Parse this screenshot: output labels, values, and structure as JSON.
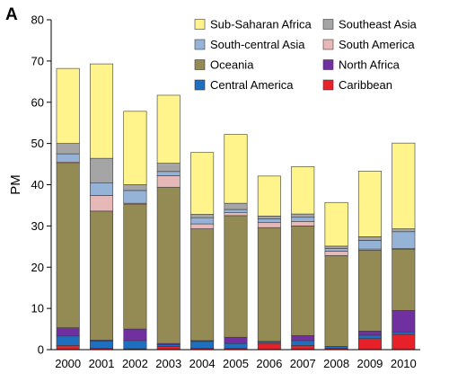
{
  "panel_letter": "A",
  "chart_data": {
    "type": "bar",
    "stacked": true,
    "title": "",
    "xlabel": "",
    "ylabel": "PM",
    "ylim": [
      0,
      80
    ],
    "yticks": [
      0,
      10,
      20,
      30,
      40,
      50,
      60,
      70,
      80
    ],
    "grid": false,
    "legend_position": "top-right",
    "categories": [
      "2000",
      "2001",
      "2002",
      "2003",
      "2004",
      "2005",
      "2006",
      "2007",
      "2008",
      "2009",
      "2010"
    ],
    "series": [
      {
        "name": "Caribbean",
        "color": "#e8202a",
        "values": [
          1.0,
          0.3,
          0.2,
          0.8,
          0.3,
          0.3,
          1.5,
          1.0,
          0.3,
          2.7,
          3.7
        ]
      },
      {
        "name": "Central America",
        "color": "#1f6fc1",
        "values": [
          2.3,
          1.8,
          2.0,
          0.4,
          1.7,
          1.2,
          0.4,
          1.2,
          0.5,
          0.8,
          0.6
        ]
      },
      {
        "name": "North Africa",
        "color": "#7030a0",
        "values": [
          2.0,
          0.2,
          2.8,
          0.3,
          0.2,
          1.5,
          0.1,
          1.2,
          0.0,
          1.0,
          5.2
        ]
      },
      {
        "name": "Oceania",
        "color": "#948a54",
        "values": [
          39.9,
          31.3,
          30.3,
          37.9,
          27.1,
          29.5,
          27.6,
          26.6,
          22.0,
          19.6,
          14.8
        ]
      },
      {
        "name": "South America",
        "color": "#e6b9b8",
        "values": [
          0.3,
          3.8,
          0.2,
          2.8,
          1.2,
          0.7,
          1.2,
          1.1,
          1.1,
          0.3,
          0.2
        ]
      },
      {
        "name": "South-central Asia",
        "color": "#95b3d7",
        "values": [
          2.0,
          3.0,
          3.1,
          1.0,
          1.5,
          0.8,
          0.9,
          1.0,
          0.6,
          2.1,
          4.1
        ]
      },
      {
        "name": "Southeast Asia",
        "color": "#a5a5a5",
        "values": [
          2.5,
          6.0,
          1.4,
          2.0,
          0.8,
          1.5,
          0.7,
          0.8,
          0.6,
          0.9,
          0.7
        ]
      },
      {
        "name": "Sub-Saharan Africa",
        "color": "#fff38b",
        "values": [
          18.2,
          22.9,
          17.8,
          16.5,
          15.0,
          16.7,
          9.7,
          11.5,
          10.6,
          15.9,
          20.8
        ]
      }
    ],
    "legend_order": [
      [
        "Sub-Saharan Africa",
        "Southeast Asia"
      ],
      [
        "South-central Asia",
        "South America"
      ],
      [
        "Oceania",
        "North Africa"
      ],
      [
        "Central America",
        "Caribbean"
      ]
    ]
  }
}
